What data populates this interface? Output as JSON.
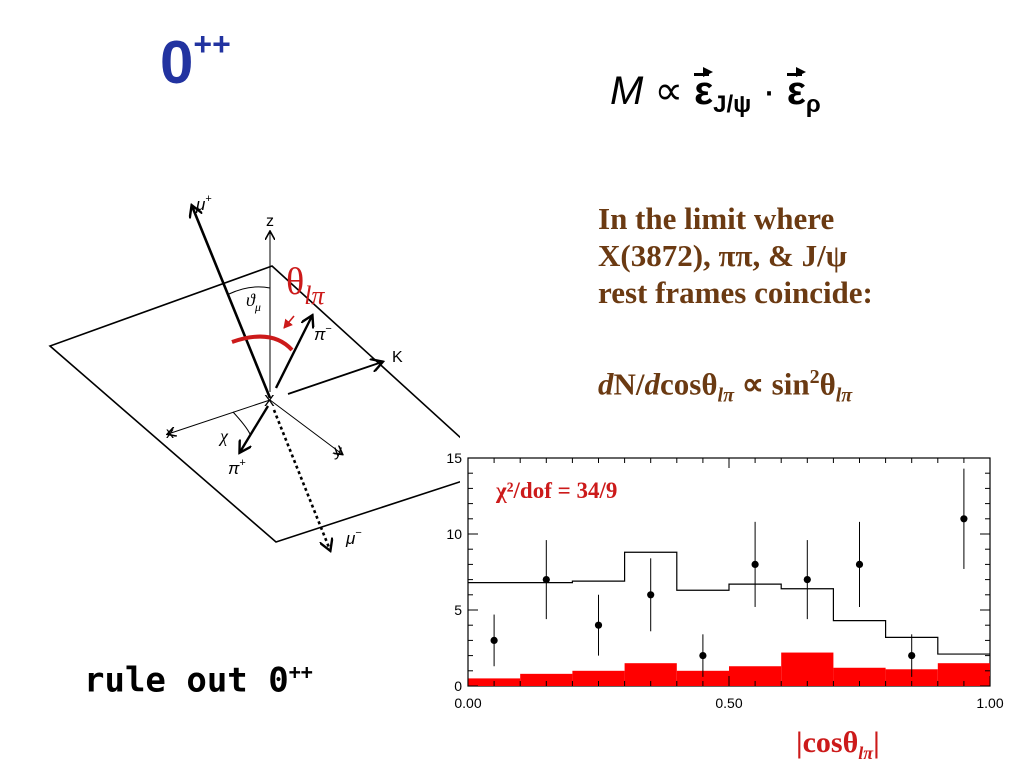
{
  "slide": {
    "title_base": "0",
    "title_sup": "++",
    "formula": {
      "lhs": "M",
      "rel": "∝",
      "vec1": "ε",
      "sub1": "J/ψ",
      "dot": "·",
      "vec2": "ε",
      "sub2": "ρ"
    },
    "note_lines": [
      "In the limit where",
      "X(3872), ππ, & J/ψ",
      "rest frames coincide:"
    ],
    "rate": {
      "d1": "d",
      "n": "N/",
      "d2": "d",
      "cos": "cosθ",
      "sub1": "lπ",
      "rel": " ∝ sin",
      "sup": "2",
      "theta": "θ",
      "sub2": "lπ"
    },
    "conclusion": {
      "base": "rule out 0",
      "sup": "++"
    }
  },
  "diagram": {
    "mu_plus": "μ",
    "mu_plus_sup": "+",
    "mu_minus": "μ",
    "mu_minus_sup": "−",
    "pi_minus": "π",
    "pi_minus_sup": "−",
    "pi_plus": "π",
    "pi_plus_sup": "+",
    "z": "z",
    "x_axis": "x",
    "y_axis": "y",
    "K": "K",
    "X": "X",
    "theta_mu": "ϑ",
    "theta_mu_sub": "μ",
    "chi": "χ",
    "theta_lpi": "θ",
    "theta_lpi_sub": "lπ"
  },
  "chart_data": {
    "type": "histogram",
    "chi2_label": "χ²/dof = 34/9",
    "xlabel_text": "|cosθ",
    "xlabel_sub": "lπ",
    "xlabel_end": "|",
    "xlim": [
      0,
      1
    ],
    "ylim": [
      0,
      15
    ],
    "x_ticks": [
      "0.00",
      "0.50",
      "1.00"
    ],
    "y_ticks": [
      "0",
      "5",
      "10",
      "15"
    ],
    "bin_edges": [
      0.0,
      0.1,
      0.2,
      0.3,
      0.4,
      0.5,
      0.6,
      0.7,
      0.8,
      0.9,
      1.0
    ],
    "data_points": {
      "x": [
        0.05,
        0.15,
        0.25,
        0.35,
        0.45,
        0.55,
        0.65,
        0.75,
        0.85,
        0.95
      ],
      "y": [
        3,
        7,
        4,
        6,
        2,
        8,
        7,
        8,
        2,
        11
      ],
      "err": [
        1.7,
        2.6,
        2.0,
        2.4,
        1.4,
        2.8,
        2.6,
        2.8,
        1.4,
        3.3
      ]
    },
    "model_curve": [
      6.8,
      6.8,
      6.9,
      8.8,
      6.3,
      6.7,
      6.4,
      4.3,
      3.2,
      2.1
    ],
    "background": [
      0.5,
      0.8,
      1.0,
      1.5,
      1.0,
      1.3,
      2.2,
      1.2,
      1.1,
      1.5
    ],
    "colors": {
      "background_fill": "#ff0000",
      "text_red": "#cc1a1a",
      "title_blue": "#2233a0",
      "note_brown": "#6b3a12"
    }
  }
}
